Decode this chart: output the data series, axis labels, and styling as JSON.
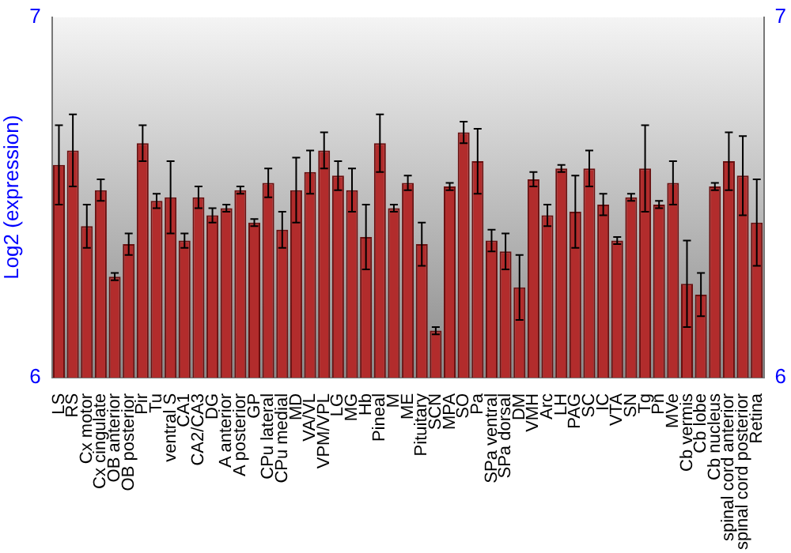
{
  "chart_data": {
    "type": "bar",
    "ylabel": "Log2 (expression)",
    "categories": [
      "LS",
      "RS",
      "Cx motor",
      "Cx cingulate",
      "OB anterior",
      "OB posterior",
      "Pir",
      "Tu",
      "ventral S",
      "CA1",
      "CA2/CA3",
      "DG",
      "A anterior",
      "A posterior",
      "GP",
      "CPu lateral",
      "CPu medial",
      "MD",
      "VA/VL",
      "VPM/VPL",
      "LG",
      "MG",
      "Hb",
      "Pineal",
      "M",
      "ME",
      "Pituitary",
      "SCN",
      "MPA",
      "SO",
      "Pa",
      "SPa ventral",
      "SPa dorsal",
      "DM",
      "VMH",
      "Arc",
      "LH",
      "PAG",
      "SC",
      "IC",
      "VTA",
      "SN",
      "Tg",
      "Pn",
      "MVe",
      "Cb vermis",
      "Cb lobe",
      "Cb nucleus",
      "spinal cord anterior",
      "spinal cord posterior",
      "Retina"
    ],
    "values": [
      6.59,
      6.63,
      6.42,
      6.52,
      6.28,
      6.37,
      6.65,
      6.49,
      6.5,
      6.38,
      6.5,
      6.45,
      6.47,
      6.52,
      6.43,
      6.54,
      6.41,
      6.52,
      6.57,
      6.63,
      6.56,
      6.52,
      6.39,
      6.65,
      6.47,
      6.54,
      6.37,
      6.13,
      6.53,
      6.68,
      6.6,
      6.38,
      6.35,
      6.25,
      6.55,
      6.45,
      6.58,
      6.46,
      6.58,
      6.48,
      6.38,
      6.5,
      6.58,
      6.48,
      6.54,
      6.26,
      6.23,
      6.53,
      6.6,
      6.56,
      6.43
    ],
    "errors": [
      0.11,
      0.1,
      0.06,
      0.03,
      0.01,
      0.03,
      0.05,
      0.02,
      0.1,
      0.02,
      0.03,
      0.02,
      0.01,
      0.01,
      0.01,
      0.04,
      0.05,
      0.09,
      0.06,
      0.05,
      0.04,
      0.06,
      0.09,
      0.08,
      0.01,
      0.02,
      0.06,
      0.01,
      0.01,
      0.03,
      0.09,
      0.03,
      0.05,
      0.09,
      0.02,
      0.03,
      0.01,
      0.1,
      0.05,
      0.03,
      0.01,
      0.01,
      0.12,
      0.01,
      0.06,
      0.12,
      0.06,
      0.01,
      0.08,
      0.11,
      0.12
    ],
    "color": "#b22c2c",
    "ylim": [
      6,
      7
    ],
    "yticks": [
      6,
      7
    ],
    "y2lim": [
      6,
      7
    ],
    "y2ticks": [
      6,
      7
    ],
    "grid": false,
    "legend": false
  }
}
